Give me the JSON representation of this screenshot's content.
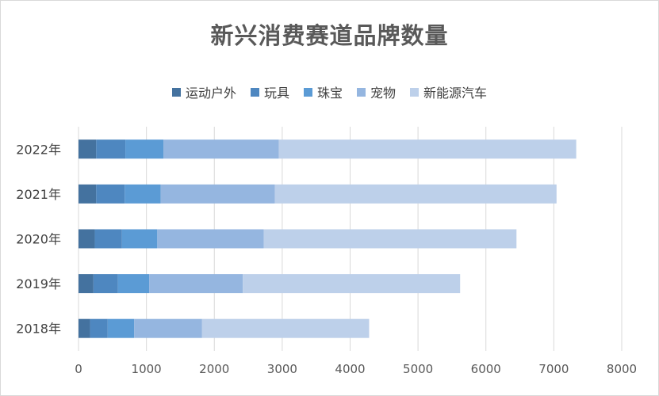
{
  "chart_data": {
    "type": "bar",
    "orientation": "horizontal",
    "stacked": true,
    "title": "新兴消费赛道品牌数量",
    "categories": [
      "2018年",
      "2019年",
      "2020年",
      "2021年",
      "2022年"
    ],
    "series": [
      {
        "name": "运动户外",
        "color": "#44729f",
        "values": [
          170,
          220,
          240,
          260,
          260
        ]
      },
      {
        "name": "玩具",
        "color": "#4e87c0",
        "values": [
          260,
          360,
          400,
          420,
          430
        ]
      },
      {
        "name": "珠宝",
        "color": "#5b9bd5",
        "values": [
          390,
          460,
          520,
          530,
          560
        ]
      },
      {
        "name": "宠物",
        "color": "#95b6e0",
        "values": [
          1000,
          1380,
          1570,
          1680,
          1700
        ]
      },
      {
        "name": "新能源汽车",
        "color": "#bdd0ea",
        "values": [
          2460,
          3200,
          3720,
          4150,
          4380
        ]
      }
    ],
    "xlim": [
      0,
      8000
    ],
    "xticks": [
      "0",
      "1000",
      "2000",
      "3000",
      "4000",
      "5000",
      "6000",
      "7000",
      "8000"
    ],
    "grid": true,
    "legend": "top"
  }
}
